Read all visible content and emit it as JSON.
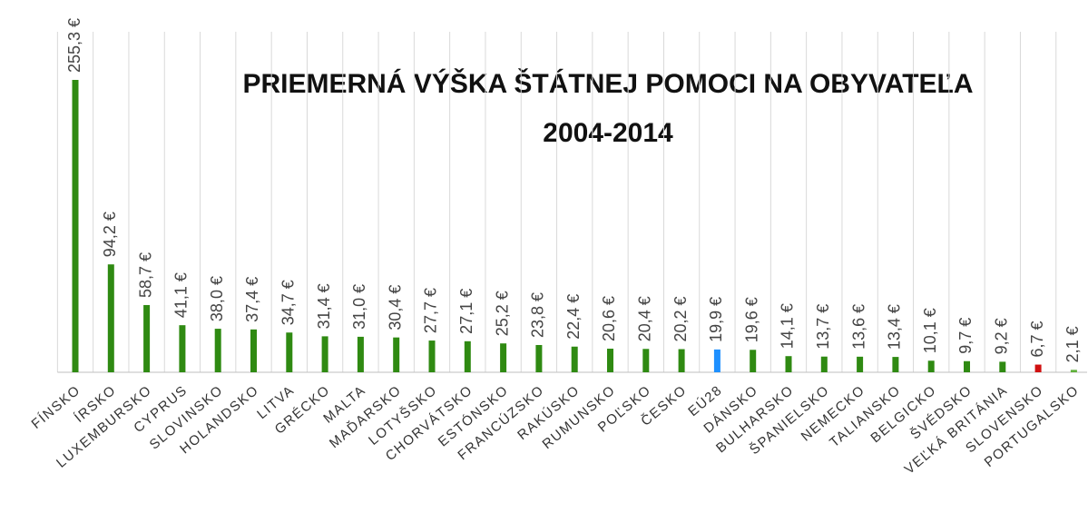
{
  "chart_data": {
    "type": "bar",
    "title": [
      "PRIEMERNÁ VÝŠKA ŠTÁTNEJ POMOCI NA OBYVATEĽA",
      "2004-2014"
    ],
    "categories": [
      "FÍNSKO",
      "ÍRSKO",
      "LUXEMBURSKO",
      "CYPRUS",
      "SLOVINSKO",
      "HOLANDSKO",
      "LITVA",
      "GRÉCKO",
      "MALTA",
      "MAĎARSKO",
      "LOTYŠSKO",
      "CHORVÁTSKO",
      "ESTÓNSKO",
      "FRANCÚZSKO",
      "RAKÚSKO",
      "RUMUNSKO",
      "POĽSKO",
      "ČESKO",
      "EÚ28",
      "DÁNSKO",
      "BULHARSKO",
      "ŠPANIELSKO",
      "NEMECKO",
      "TALIANSKO",
      "BELGICKO",
      "ŠVÉDSKO",
      "VEĽKÁ BRITÁNIA",
      "SLOVENSKO",
      "PORTUGALSKO"
    ],
    "values": [
      255.3,
      94.2,
      58.7,
      41.1,
      38.0,
      37.4,
      34.7,
      31.4,
      31.0,
      30.4,
      27.7,
      27.1,
      25.2,
      23.8,
      22.4,
      20.6,
      20.4,
      20.2,
      19.9,
      19.6,
      14.1,
      13.7,
      13.6,
      13.4,
      10.1,
      9.7,
      9.2,
      6.7,
      2.1
    ],
    "value_labels": [
      "255,3 €",
      "94,2 €",
      "58,7 €",
      "41,1 €",
      "38,0 €",
      "37,4 €",
      "34,7 €",
      "31,4 €",
      "31,0 €",
      "30,4 €",
      "27,7 €",
      "27,1 €",
      "25,2 €",
      "23,8 €",
      "22,4 €",
      "20,6 €",
      "20,4 €",
      "20,2 €",
      "19,9 €",
      "19,6 €",
      "14,1 €",
      "13,7 €",
      "13,6 €",
      "13,4 €",
      "10,1 €",
      "9,7 €",
      "9,2 €",
      "6,7 €",
      "2,1 €"
    ],
    "colors": [
      "#2f8a12",
      "#2f8a12",
      "#2f8a12",
      "#2f8a12",
      "#2f8a12",
      "#2f8a12",
      "#2f8a12",
      "#2f8a12",
      "#2f8a12",
      "#2f8a12",
      "#2f8a12",
      "#2f8a12",
      "#2f8a12",
      "#2f8a12",
      "#2f8a12",
      "#2f8a12",
      "#2f8a12",
      "#2f8a12",
      "#1e90ff",
      "#2f8a12",
      "#2f8a12",
      "#2f8a12",
      "#2f8a12",
      "#2f8a12",
      "#2f8a12",
      "#2f8a12",
      "#2f8a12",
      "#d01010",
      "#5fb03a"
    ],
    "grid": true
  }
}
